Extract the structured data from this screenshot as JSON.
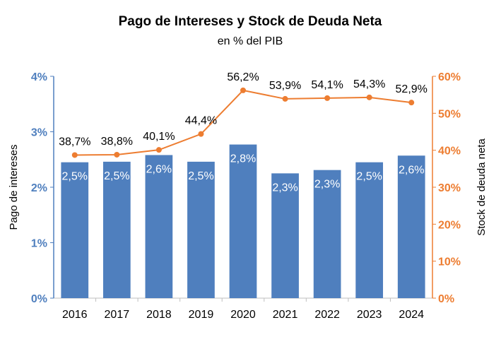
{
  "chart_data": {
    "type": "bar",
    "title": "Pago de Intereses y Stock de Deuda Neta",
    "subtitle": "en % del PIB",
    "categories": [
      "2016",
      "2017",
      "2018",
      "2019",
      "2020",
      "2021",
      "2022",
      "2023",
      "2024"
    ],
    "series": [
      {
        "type": "bar",
        "axis": "left",
        "color": "#4f7fbe",
        "values": [
          2.45,
          2.46,
          2.58,
          2.46,
          2.77,
          2.25,
          2.31,
          2.45,
          2.57
        ],
        "labels": [
          "2,5%",
          "2,5%",
          "2,6%",
          "2,5%",
          "2,8%",
          "2,3%",
          "2,3%",
          "2,5%",
          "2,6%"
        ]
      },
      {
        "type": "line",
        "axis": "right",
        "color": "#ed7d31",
        "values": [
          38.7,
          38.8,
          40.1,
          44.4,
          56.2,
          53.9,
          54.1,
          54.3,
          52.9
        ],
        "labels": [
          "38,7%",
          "38,8%",
          "40,1%",
          "44,4%",
          "56,2%",
          "53,9%",
          "54,1%",
          "54,3%",
          "52,9%"
        ]
      }
    ],
    "y_left": {
      "label": "Pago de intereses",
      "range": [
        0,
        4
      ],
      "ticks": [
        0,
        1,
        2,
        3,
        4
      ],
      "tick_labels": [
        "0%",
        "1%",
        "2%",
        "3%",
        "4%"
      ],
      "color": "#4f7fbe"
    },
    "y_right": {
      "label": "Stock de deuda neta",
      "range": [
        0,
        60
      ],
      "ticks": [
        0,
        10,
        20,
        30,
        40,
        50,
        60
      ],
      "tick_labels": [
        "0%",
        "10%",
        "20%",
        "30%",
        "40%",
        "50%",
        "60%"
      ],
      "color": "#ed7d31"
    },
    "grid": false,
    "legend": "none"
  }
}
